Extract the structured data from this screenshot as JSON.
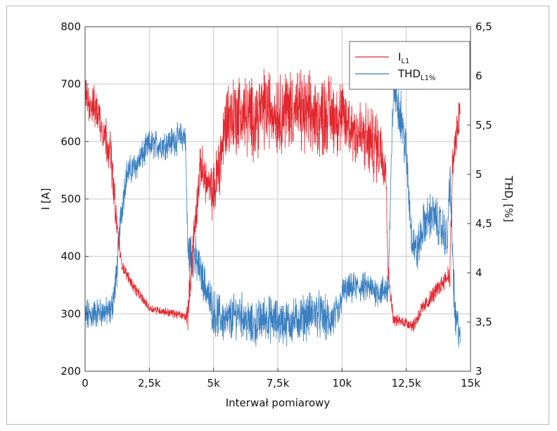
{
  "chart_data": {
    "type": "line",
    "xlabel": "Interwał pomiarowy",
    "ylabel_left": "I [A]",
    "ylabel_right": "THD",
    "ylabel_right_sub": "I",
    "ylabel_right_unit": " [%]",
    "xlim": [
      0,
      15000
    ],
    "ylim_left": [
      200,
      800
    ],
    "ylim_right": [
      3,
      6.5
    ],
    "x_ticks": [
      0,
      2500,
      5000,
      7500,
      10000,
      12500,
      15000
    ],
    "x_tick_labels": [
      "0",
      "2,5k",
      "5k",
      "7,5k",
      "10k",
      "12,5k",
      "15k"
    ],
    "y_left_ticks": [
      200,
      300,
      400,
      500,
      600,
      700,
      800
    ],
    "y_left_tick_labels": [
      "200",
      "300",
      "400",
      "500",
      "600",
      "700",
      "800"
    ],
    "y_right_ticks": [
      3,
      3.5,
      4,
      4.5,
      5,
      5.5,
      6,
      6.5
    ],
    "y_right_tick_labels": [
      "3",
      "3,5",
      "4",
      "4,5",
      "5",
      "5,5",
      "6",
      "6,5"
    ],
    "grid": true,
    "legend_position": "top-right",
    "series": [
      {
        "name": "I",
        "name_sub": "L1",
        "axis": "left",
        "color": "#e3262e",
        "x": [
          0,
          500,
          1000,
          1200,
          1400,
          1600,
          2000,
          2500,
          3000,
          3500,
          3900,
          4000,
          4200,
          4500,
          4800,
          5000,
          5300,
          5500,
          6000,
          6500,
          7000,
          7500,
          8000,
          8500,
          9000,
          9500,
          10000,
          10500,
          11000,
          11500,
          11700,
          11800,
          12000,
          12500,
          12800,
          13000,
          13500,
          14000,
          14200,
          14300,
          14500,
          14600
        ],
        "y": [
          680,
          650,
          580,
          470,
          390,
          370,
          340,
          310,
          305,
          300,
          295,
          300,
          420,
          560,
          520,
          510,
          580,
          640,
          650,
          640,
          660,
          650,
          660,
          650,
          640,
          650,
          640,
          620,
          600,
          590,
          560,
          370,
          290,
          285,
          280,
          300,
          330,
          360,
          370,
          560,
          620,
          660
        ],
        "amplitude": [
          25,
          30,
          30,
          20,
          10,
          8,
          8,
          6,
          6,
          6,
          6,
          20,
          30,
          30,
          30,
          40,
          50,
          55,
          55,
          55,
          55,
          55,
          55,
          55,
          55,
          55,
          50,
          50,
          50,
          50,
          30,
          15,
          8,
          8,
          10,
          12,
          12,
          12,
          20,
          30,
          30,
          30
        ]
      },
      {
        "name": "THD",
        "name_sub": "L1%",
        "axis": "right",
        "color": "#3a7fc1",
        "x": [
          0,
          500,
          1000,
          1200,
          1400,
          1600,
          2000,
          2500,
          3000,
          3500,
          3900,
          4000,
          4200,
          4500,
          5000,
          5500,
          6000,
          6500,
          7000,
          7500,
          8000,
          8500,
          9000,
          9500,
          9900,
          10000,
          10500,
          11000,
          11500,
          11800,
          12000,
          12300,
          12500,
          12700,
          12900,
          13200,
          13500,
          14000,
          14100,
          14200,
          14400,
          14600
        ],
        "y": [
          3.55,
          3.6,
          3.6,
          3.9,
          4.6,
          5.0,
          5.1,
          5.3,
          5.3,
          5.35,
          5.4,
          4.2,
          4.2,
          4.0,
          3.6,
          3.5,
          3.6,
          3.45,
          3.55,
          3.5,
          3.5,
          3.55,
          3.6,
          3.5,
          3.6,
          3.8,
          3.85,
          3.85,
          3.8,
          3.85,
          5.9,
          5.6,
          5.2,
          4.4,
          4.2,
          4.5,
          4.6,
          4.4,
          4.3,
          5.0,
          3.5,
          3.4
        ],
        "amplitude": [
          0.15,
          0.12,
          0.12,
          0.15,
          0.15,
          0.12,
          0.12,
          0.12,
          0.12,
          0.12,
          0.12,
          0.2,
          0.2,
          0.15,
          0.18,
          0.18,
          0.18,
          0.18,
          0.18,
          0.18,
          0.18,
          0.18,
          0.18,
          0.18,
          0.15,
          0.12,
          0.12,
          0.12,
          0.12,
          0.15,
          0.2,
          0.2,
          0.2,
          0.18,
          0.18,
          0.18,
          0.18,
          0.18,
          0.18,
          0.2,
          0.2,
          0.15
        ]
      }
    ]
  }
}
